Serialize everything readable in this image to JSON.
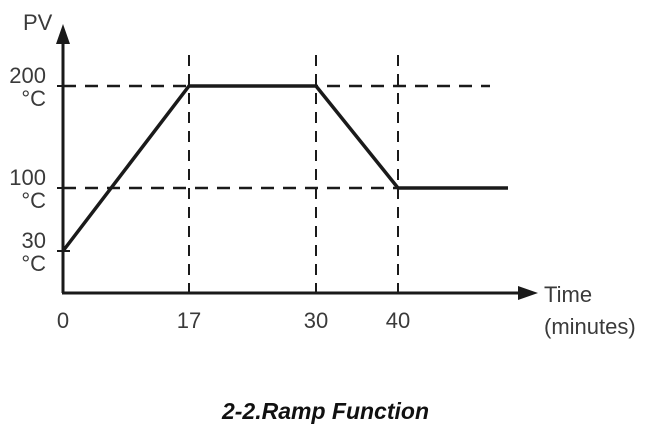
{
  "chart_data": {
    "type": "line",
    "ylabel": "PV",
    "xlabel": "Time",
    "xlabel_unit": "(minutes)",
    "x_ticks": [
      "0",
      "17",
      "30",
      "40"
    ],
    "y_ticks": [
      {
        "value": "200",
        "unit": "°C"
      },
      {
        "value": "100",
        "unit": "°C"
      },
      {
        "value": "30",
        "unit": "°C"
      }
    ],
    "series": [
      {
        "x": [
          0,
          17,
          30,
          40,
          53
        ],
        "y": [
          30,
          200,
          200,
          100,
          100
        ]
      }
    ],
    "reference_lines": {
      "horizontal": [
        200,
        100
      ],
      "vertical": [
        17,
        30,
        40
      ]
    },
    "line_color": "#1a1a1a"
  },
  "caption": "2-2.Ramp Function"
}
